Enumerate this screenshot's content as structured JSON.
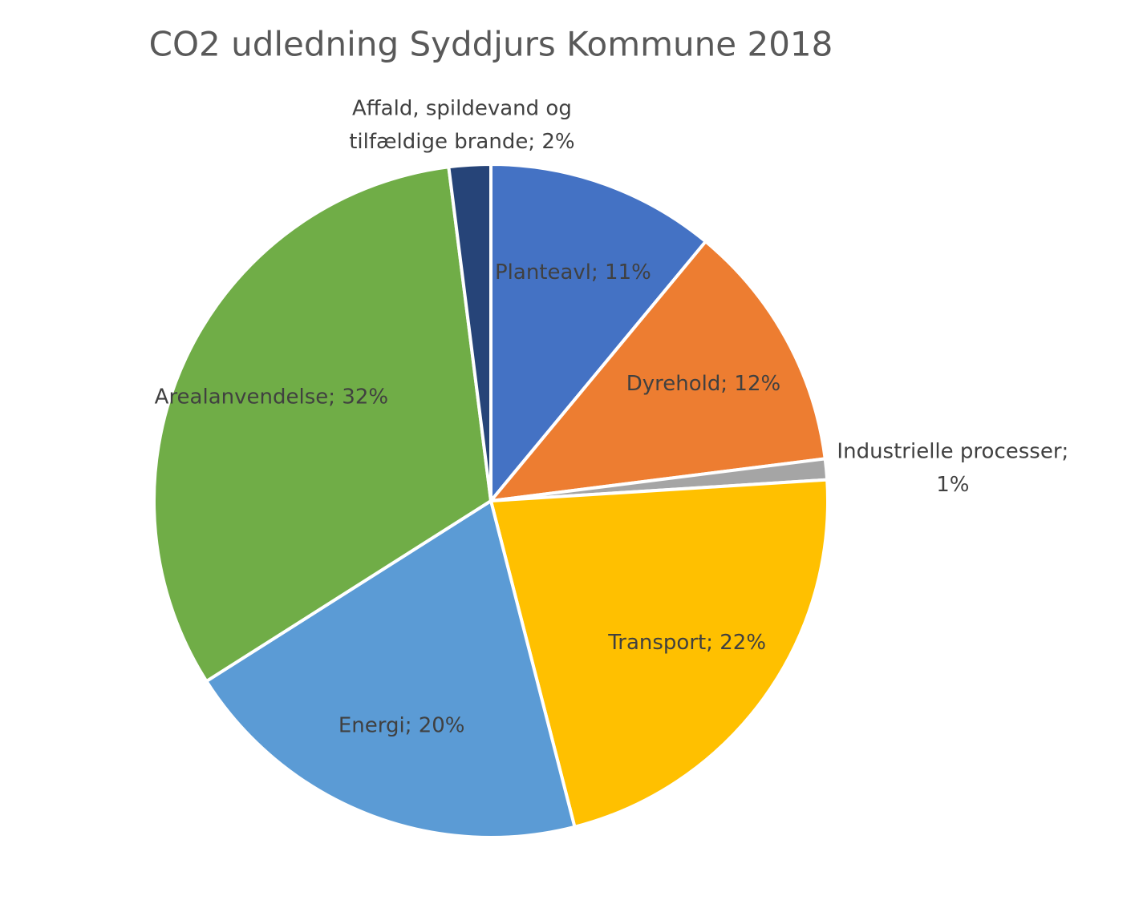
{
  "chart_data": {
    "type": "pie",
    "title": "CO2 udledning Syddjurs Kommune 2018",
    "categories": [
      "Planteavl; 11%",
      "Dyrehold; 12%",
      "Industrielle processer; 1%",
      "Transport; 22%",
      "Energi; 20%",
      "Arealanvendelse; 32%",
      "Affald, spildevand og tilfældige brande; 2%"
    ],
    "values": [
      11,
      12,
      1,
      22,
      20,
      32,
      2
    ],
    "colors": [
      "#4472c4",
      "#ed7d31",
      "#a5a5a5",
      "#ffc000",
      "#5b9bd5",
      "#70ad47",
      "#264478"
    ]
  }
}
